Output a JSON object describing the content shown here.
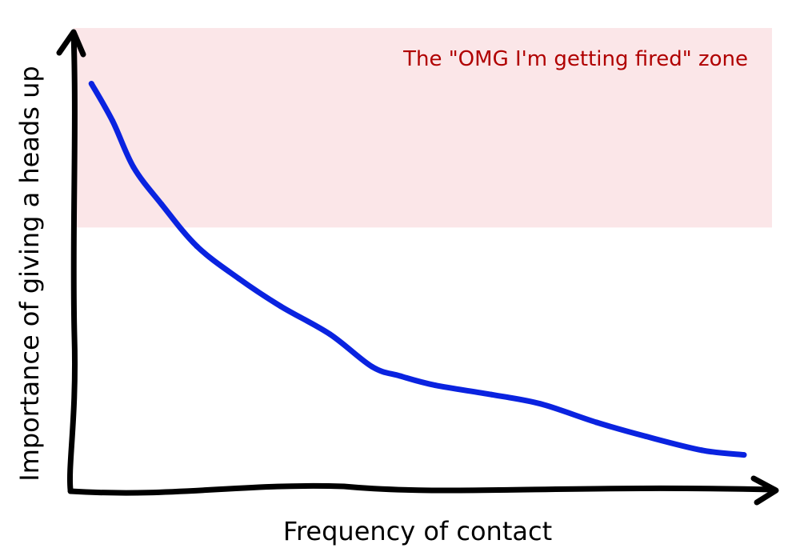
{
  "chart_data": {
    "type": "line",
    "title": "",
    "xlabel": "Frequency of contact",
    "ylabel": "Importance of giving a heads up",
    "xlim": [
      0,
      100
    ],
    "ylim": [
      0,
      100
    ],
    "grid": false,
    "ticks": false,
    "zone": {
      "label": "The \"OMG I'm getting fired\" zone",
      "y_from": 57,
      "y_to": 100,
      "color": "#fbe6e8",
      "label_color": "#b00000"
    },
    "series": [
      {
        "color": "#0a23e0",
        "x": [
          3,
          6,
          9,
          13,
          18,
          24,
          30,
          37,
          43,
          47,
          52,
          60,
          67,
          75,
          82,
          90,
          96
        ],
        "y": [
          88,
          80,
          70,
          62,
          53,
          46,
          40,
          34,
          27,
          25,
          23,
          21,
          19,
          15,
          12,
          9,
          8
        ]
      }
    ],
    "axis_color": "#000000"
  }
}
